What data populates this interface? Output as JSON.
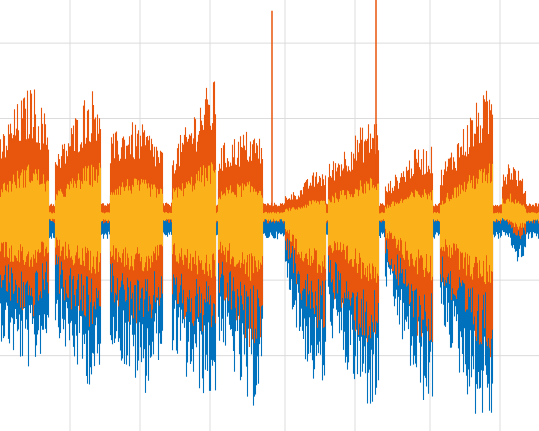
{
  "chart_data": {
    "type": "line",
    "title": "",
    "xlabel": "",
    "ylabel": "",
    "grid": true,
    "legend": "none",
    "xlim": [
      0,
      539
    ],
    "ylim": [
      -1.0,
      1.0
    ],
    "x_gridlines": [
      70,
      140,
      210,
      285,
      355,
      430,
      500
    ],
    "y_gridlines": [
      0.8,
      0.45,
      -0.3,
      -0.65
    ],
    "bursts": [
      {
        "start": 0,
        "end": 48,
        "top": [
          0.35,
          0.5,
          0.6,
          0.42
        ],
        "bottom": [
          -0.55,
          -0.65,
          -0.7,
          -0.55
        ]
      },
      {
        "start": 55,
        "end": 100,
        "top": [
          0.25,
          0.4,
          0.55,
          0.6
        ],
        "bottom": [
          -0.5,
          -0.65,
          -0.75,
          -0.8
        ]
      },
      {
        "start": 110,
        "end": 162,
        "top": [
          0.35,
          0.42,
          0.4,
          0.3
        ],
        "bottom": [
          -0.55,
          -0.72,
          -0.8,
          -0.6
        ]
      },
      {
        "start": 172,
        "end": 215,
        "top": [
          0.3,
          0.4,
          0.55,
          0.62
        ],
        "bottom": [
          -0.6,
          -0.75,
          -0.8,
          -0.85
        ]
      },
      {
        "start": 218,
        "end": 262,
        "top": [
          0.3,
          0.35,
          0.38,
          0.35
        ],
        "bottom": [
          -0.55,
          -0.7,
          -0.9,
          -0.8
        ]
      },
      {
        "start": 285,
        "end": 325,
        "top": [
          0.08,
          0.1,
          0.18,
          0.2
        ],
        "bottom": [
          -0.25,
          -0.55,
          -0.75,
          -0.8
        ]
      },
      {
        "start": 328,
        "end": 378,
        "top": [
          0.22,
          0.3,
          0.4,
          0.45
        ],
        "bottom": [
          -0.5,
          -0.7,
          -0.85,
          -0.9
        ]
      },
      {
        "start": 385,
        "end": 432,
        "top": [
          0.12,
          0.2,
          0.3,
          0.3
        ],
        "bottom": [
          -0.3,
          -0.55,
          -0.8,
          -0.9
        ]
      },
      {
        "start": 440,
        "end": 492,
        "top": [
          0.2,
          0.35,
          0.5,
          0.6
        ],
        "bottom": [
          -0.45,
          -0.7,
          -0.9,
          -0.95
        ]
      },
      {
        "start": 502,
        "end": 525,
        "top": [
          0.2,
          0.25,
          0.2,
          0.12
        ],
        "bottom": [
          -0.05,
          -0.1,
          -0.2,
          -0.15
        ]
      }
    ],
    "spikes": [
      {
        "x": 272,
        "top": 0.95
      },
      {
        "x": 376,
        "top": 1.0
      }
    ],
    "series": [
      {
        "color": "#0072BD"
      },
      {
        "color": "#E8550C"
      },
      {
        "color": "#FBB21A"
      }
    ]
  }
}
